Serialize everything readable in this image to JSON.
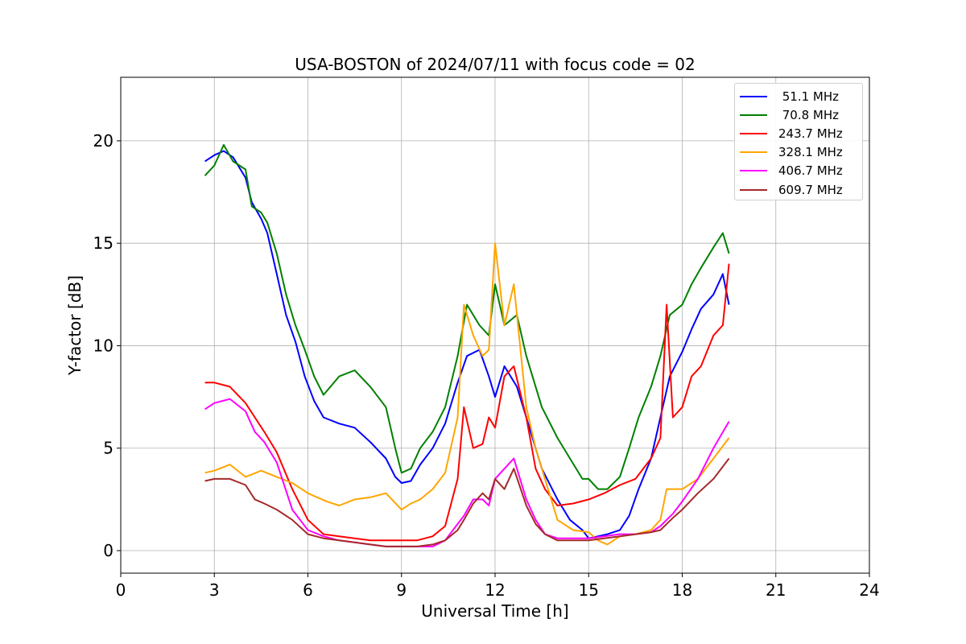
{
  "chart_data": {
    "type": "line",
    "title": "USA-BOSTON of 2024/07/11 with focus code = 02",
    "xlabel": "Universal Time [h]",
    "ylabel": "Y-factor [dB]",
    "xlim": [
      0,
      24
    ],
    "ylim": [
      -1.1,
      23.1
    ],
    "xticks": [
      0,
      3,
      6,
      9,
      12,
      15,
      18,
      21,
      24
    ],
    "yticks": [
      0,
      5,
      10,
      15,
      20
    ],
    "xtick_labels": [
      "0",
      "3",
      "6",
      "9",
      "12",
      "15",
      "18",
      "21",
      "24"
    ],
    "ytick_labels": [
      "0",
      "5",
      "10",
      "15",
      "20"
    ],
    "grid": true,
    "legend_position": "top-right",
    "series": [
      {
        "name": " 51.1 MHz",
        "color": "#0000ff",
        "x": [
          2.7,
          3.0,
          3.3,
          3.6,
          4.0,
          4.2,
          4.5,
          4.7,
          5.0,
          5.3,
          5.6,
          5.9,
          6.2,
          6.5,
          7.0,
          7.5,
          8.0,
          8.5,
          8.8,
          9.0,
          9.3,
          9.6,
          10.0,
          10.4,
          10.8,
          11.1,
          11.5,
          11.8,
          12.0,
          12.3,
          12.7,
          13.0,
          13.5,
          14.0,
          14.4,
          14.8,
          15.0,
          15.3,
          15.6,
          16.0,
          16.3,
          16.6,
          17.0,
          17.3,
          17.6,
          18.0,
          18.3,
          18.6,
          19.0,
          19.3,
          19.5
        ],
        "y": [
          19.0,
          19.3,
          19.5,
          19.2,
          18.2,
          17.0,
          16.2,
          15.5,
          13.5,
          11.5,
          10.2,
          8.5,
          7.3,
          6.5,
          6.2,
          6.0,
          5.3,
          4.5,
          3.6,
          3.3,
          3.4,
          4.2,
          5.0,
          6.2,
          8.2,
          9.5,
          9.8,
          8.5,
          7.5,
          9.0,
          8.0,
          6.5,
          4.0,
          2.5,
          1.5,
          1.0,
          0.6,
          0.7,
          0.8,
          1.0,
          1.7,
          3.0,
          4.5,
          6.5,
          8.5,
          9.7,
          10.8,
          11.8,
          12.5,
          13.5,
          12.0
        ]
      },
      {
        "name": " 70.8 MHz",
        "color": "#008000",
        "x": [
          2.7,
          3.0,
          3.3,
          3.6,
          4.0,
          4.2,
          4.5,
          4.7,
          5.0,
          5.3,
          5.6,
          5.9,
          6.2,
          6.5,
          7.0,
          7.5,
          8.0,
          8.5,
          8.8,
          9.0,
          9.3,
          9.6,
          10.0,
          10.4,
          10.8,
          11.1,
          11.5,
          11.8,
          12.0,
          12.3,
          12.7,
          13.0,
          13.5,
          14.0,
          14.4,
          14.8,
          15.0,
          15.3,
          15.6,
          16.0,
          16.3,
          16.6,
          17.0,
          17.3,
          17.6,
          18.0,
          18.3,
          18.6,
          19.0,
          19.3,
          19.5
        ],
        "y": [
          18.3,
          18.8,
          19.8,
          19.0,
          18.6,
          16.8,
          16.5,
          16.0,
          14.5,
          12.5,
          11.0,
          9.8,
          8.5,
          7.6,
          8.5,
          8.8,
          8.0,
          7.0,
          5.0,
          3.8,
          4.0,
          5.0,
          5.8,
          7.0,
          9.5,
          12.0,
          11.0,
          10.5,
          13.0,
          11.0,
          11.5,
          9.5,
          7.0,
          5.5,
          4.5,
          3.5,
          3.5,
          3.0,
          3.0,
          3.6,
          5.0,
          6.5,
          8.0,
          9.5,
          11.5,
          12.0,
          13.0,
          13.8,
          14.8,
          15.5,
          14.5
        ]
      },
      {
        "name": "243.7 MHz",
        "color": "#ff0000",
        "x": [
          2.7,
          3.0,
          3.5,
          4.0,
          4.3,
          4.6,
          5.0,
          5.5,
          6.0,
          6.5,
          7.0,
          7.5,
          8.0,
          8.5,
          9.0,
          9.5,
          10.0,
          10.4,
          10.8,
          11.0,
          11.3,
          11.6,
          11.8,
          12.0,
          12.3,
          12.6,
          13.0,
          13.3,
          13.6,
          14.0,
          14.5,
          15.0,
          15.5,
          16.0,
          16.5,
          17.0,
          17.3,
          17.5,
          17.7,
          18.0,
          18.3,
          18.6,
          19.0,
          19.3,
          19.5
        ],
        "y": [
          8.2,
          8.2,
          8.0,
          7.2,
          6.5,
          5.8,
          4.8,
          3.0,
          1.5,
          0.8,
          0.7,
          0.6,
          0.5,
          0.5,
          0.5,
          0.5,
          0.7,
          1.2,
          3.5,
          7.0,
          5.0,
          5.2,
          6.5,
          6.0,
          8.5,
          9.0,
          6.5,
          4.0,
          3.0,
          2.2,
          2.3,
          2.5,
          2.8,
          3.2,
          3.5,
          4.5,
          5.5,
          12.0,
          6.5,
          7.0,
          8.5,
          9.0,
          10.5,
          11.0,
          14.0
        ]
      },
      {
        "name": "328.1 MHz",
        "color": "#ffa500",
        "x": [
          2.7,
          3.0,
          3.5,
          4.0,
          4.5,
          5.0,
          5.5,
          6.0,
          6.3,
          6.6,
          7.0,
          7.5,
          8.0,
          8.5,
          9.0,
          9.3,
          9.6,
          10.0,
          10.4,
          10.8,
          11.0,
          11.3,
          11.6,
          11.8,
          12.0,
          12.3,
          12.6,
          13.0,
          13.3,
          13.6,
          14.0,
          14.5,
          15.0,
          15.3,
          15.6,
          16.0,
          16.5,
          17.0,
          17.3,
          17.5,
          17.7,
          18.0,
          18.5,
          19.0,
          19.5
        ],
        "y": [
          3.8,
          3.9,
          4.2,
          3.6,
          3.9,
          3.6,
          3.3,
          2.8,
          2.6,
          2.4,
          2.2,
          2.5,
          2.6,
          2.8,
          2.0,
          2.3,
          2.5,
          3.0,
          3.8,
          6.5,
          12.0,
          10.5,
          9.5,
          9.8,
          15.0,
          11.0,
          13.0,
          7.0,
          5.0,
          3.5,
          1.5,
          1.0,
          0.9,
          0.5,
          0.3,
          0.7,
          0.8,
          1.0,
          1.5,
          3.0,
          3.0,
          3.0,
          3.5,
          4.5,
          5.5
        ]
      },
      {
        "name": "406.7 MHz",
        "color": "#ff00ff",
        "x": [
          2.7,
          3.0,
          3.5,
          4.0,
          4.3,
          4.6,
          5.0,
          5.5,
          6.0,
          6.5,
          7.0,
          7.5,
          8.0,
          8.5,
          9.0,
          9.5,
          10.0,
          10.4,
          10.8,
          11.0,
          11.3,
          11.6,
          11.8,
          12.0,
          12.3,
          12.6,
          13.0,
          13.3,
          13.6,
          14.0,
          14.5,
          15.0,
          15.5,
          16.0,
          16.5,
          17.0,
          17.3,
          17.5,
          17.7,
          18.0,
          18.5,
          19.0,
          19.5
        ],
        "y": [
          6.9,
          7.2,
          7.4,
          6.8,
          5.8,
          5.3,
          4.3,
          2.0,
          1.0,
          0.7,
          0.5,
          0.4,
          0.3,
          0.2,
          0.2,
          0.2,
          0.2,
          0.5,
          1.3,
          1.7,
          2.5,
          2.5,
          2.2,
          3.5,
          4.0,
          4.5,
          2.5,
          1.5,
          0.8,
          0.6,
          0.6,
          0.6,
          0.7,
          0.8,
          0.8,
          0.9,
          1.2,
          1.5,
          1.8,
          2.4,
          3.5,
          5.0,
          6.3
        ]
      },
      {
        "name": "609.7 MHz",
        "color": "#a52a2a",
        "x": [
          2.7,
          3.0,
          3.5,
          4.0,
          4.3,
          4.6,
          5.0,
          5.5,
          6.0,
          6.5,
          7.0,
          7.5,
          8.0,
          8.5,
          9.0,
          9.5,
          10.0,
          10.4,
          10.8,
          11.0,
          11.3,
          11.6,
          11.8,
          12.0,
          12.3,
          12.6,
          13.0,
          13.3,
          13.6,
          14.0,
          14.5,
          15.0,
          15.5,
          16.0,
          16.5,
          17.0,
          17.3,
          17.5,
          17.7,
          18.0,
          18.5,
          19.0,
          19.5
        ],
        "y": [
          3.4,
          3.5,
          3.5,
          3.2,
          2.5,
          2.3,
          2.0,
          1.5,
          0.8,
          0.6,
          0.5,
          0.4,
          0.3,
          0.2,
          0.2,
          0.2,
          0.3,
          0.5,
          1.0,
          1.5,
          2.3,
          2.8,
          2.5,
          3.5,
          3.0,
          4.0,
          2.2,
          1.3,
          0.8,
          0.5,
          0.5,
          0.5,
          0.6,
          0.7,
          0.8,
          0.9,
          1.0,
          1.3,
          1.6,
          2.0,
          2.8,
          3.5,
          4.5
        ]
      }
    ]
  }
}
